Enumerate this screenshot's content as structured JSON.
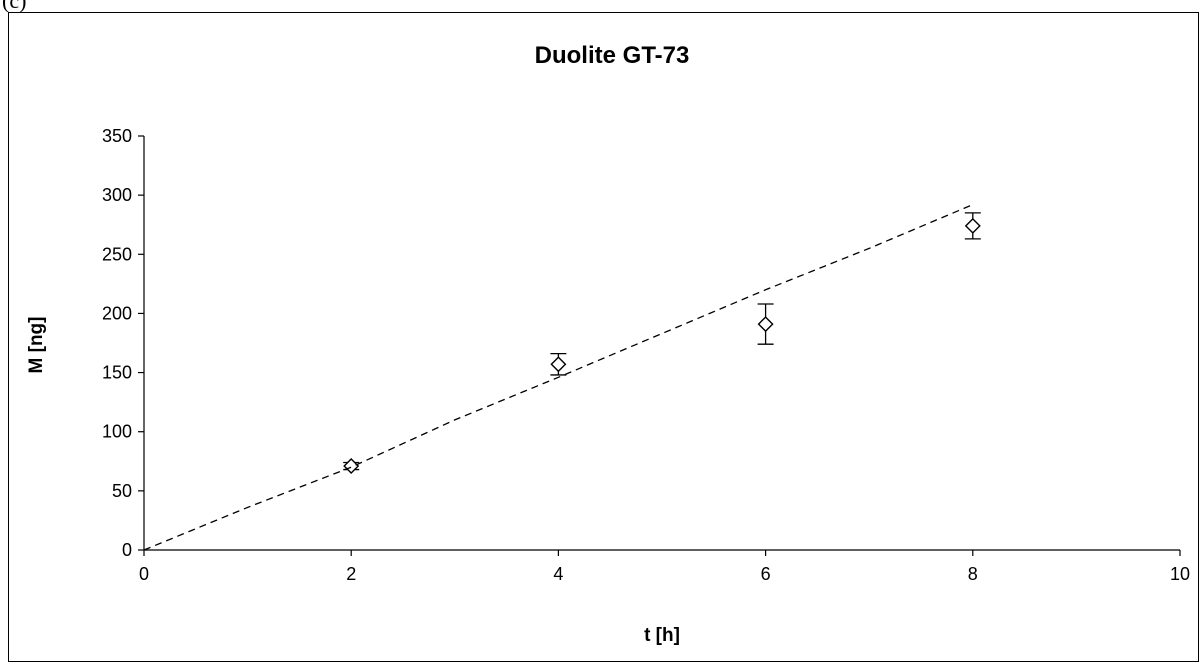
{
  "page_label": "(c)",
  "chart_data": {
    "type": "scatter",
    "title": "Duolite GT-73",
    "xlabel": "t [h]",
    "ylabel": "M [ng]",
    "xlim": [
      0,
      10
    ],
    "ylim": [
      0,
      350
    ],
    "x_ticks": [
      0,
      2,
      4,
      6,
      8,
      10
    ],
    "y_ticks": [
      0,
      50,
      100,
      150,
      200,
      250,
      300,
      350
    ],
    "grid": false,
    "legend": "none",
    "series": [
      {
        "marker": "diamond",
        "style": "markers-with-error-bars",
        "x": [
          2,
          4,
          6,
          8
        ],
        "y": [
          71,
          157,
          191,
          274
        ],
        "error": [
          3,
          9,
          17,
          11
        ]
      },
      {
        "style": "dashed-line",
        "x": [
          0,
          1,
          2,
          3,
          4,
          5,
          6,
          7,
          8
        ],
        "y": [
          0,
          36,
          70,
          110,
          146,
          183,
          220,
          255,
          292
        ]
      }
    ],
    "colors": {
      "marks": "#000000",
      "background": "#ffffff"
    }
  }
}
